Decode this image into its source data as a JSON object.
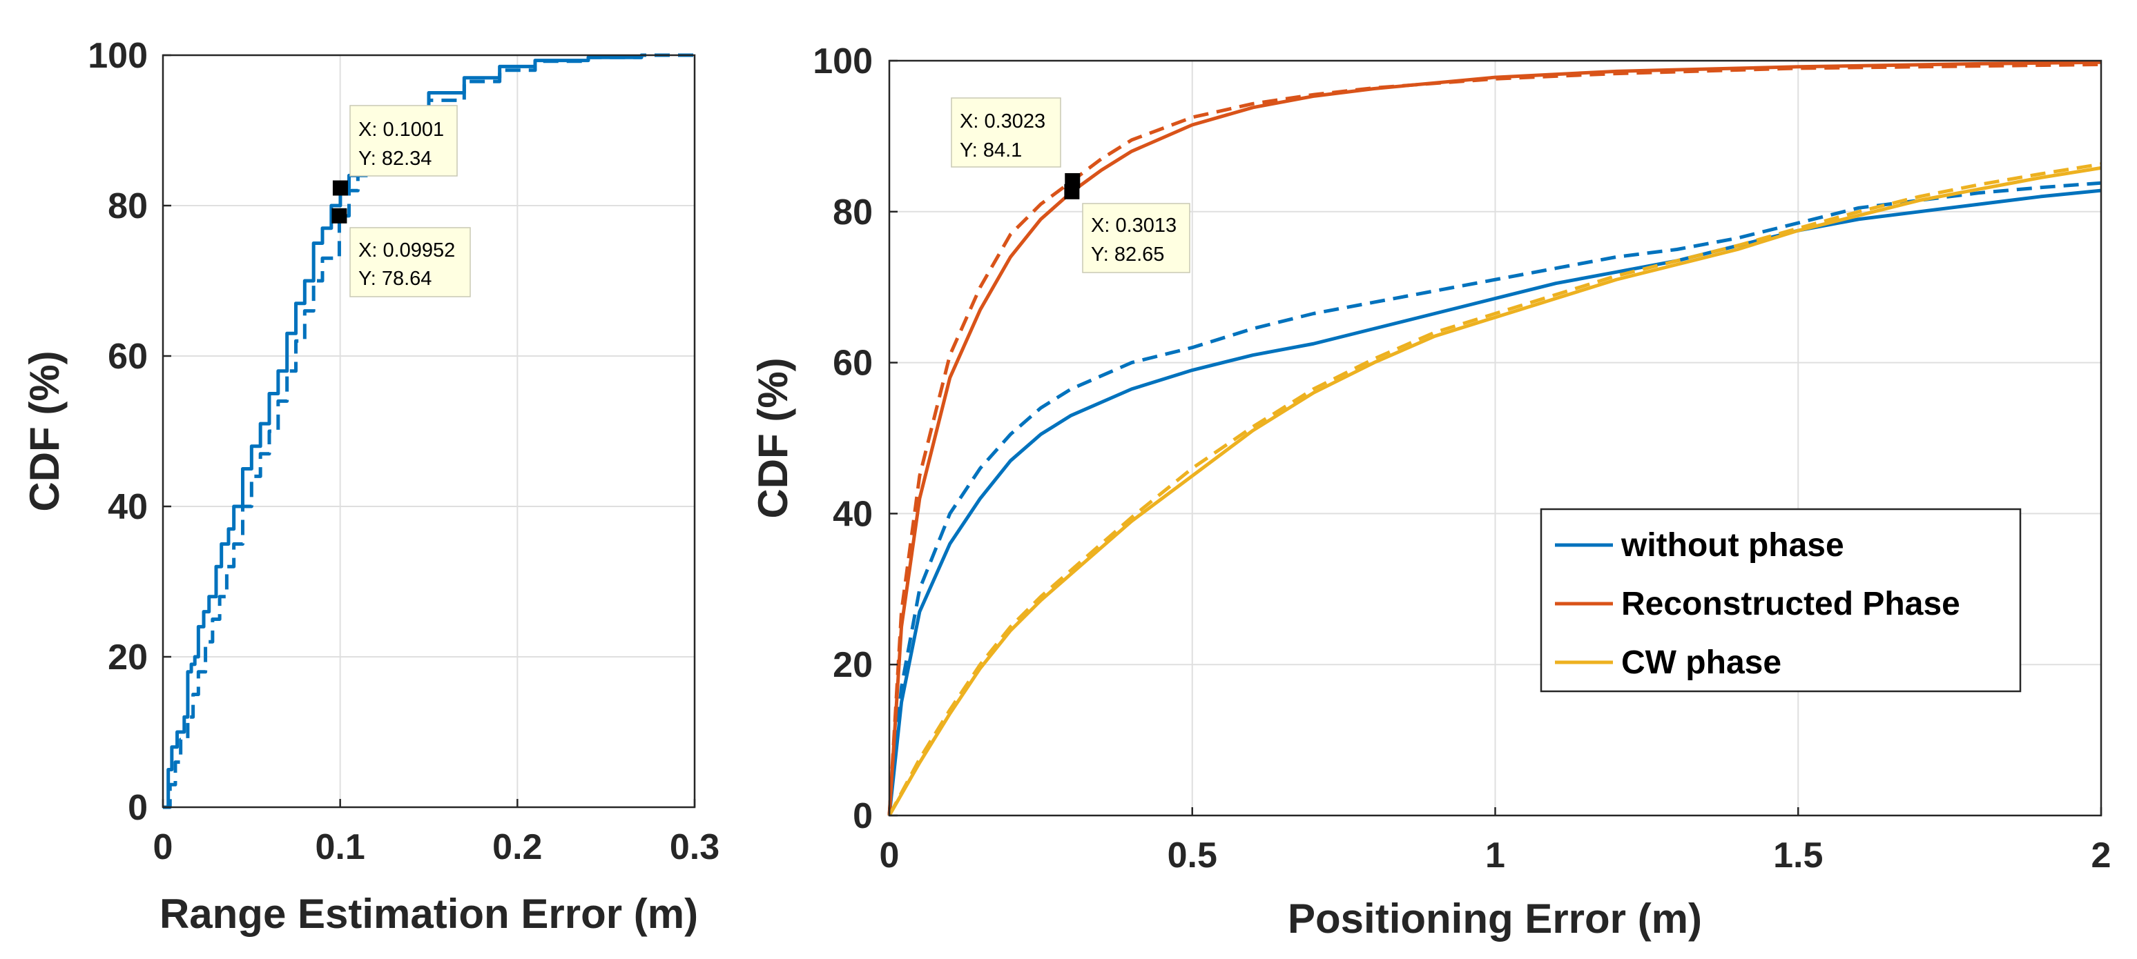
{
  "colors": {
    "without_phase": "#0072BD",
    "reconstructed_phase": "#D95319",
    "cw_phase": "#EDB120",
    "grid": "#dfdfdf",
    "axis": "#262626",
    "datatip_bg": "#ffffe1"
  },
  "chart_data": [
    {
      "type": "line",
      "xlabel": "Range Estimation Error (m)",
      "ylabel": "CDF (%)",
      "xlim": [
        0,
        0.3
      ],
      "ylim": [
        0,
        100
      ],
      "xticks": [
        "0",
        "0.1",
        "0.2",
        "0.3"
      ],
      "yticks": [
        "0",
        "20",
        "40",
        "60",
        "80",
        "100"
      ],
      "grid": true,
      "series": [
        {
          "name": "solid",
          "style": "solid",
          "color": "without_phase",
          "x": [
            0,
            0.003,
            0.005,
            0.008,
            0.012,
            0.014,
            0.016,
            0.018,
            0.02,
            0.023,
            0.026,
            0.03,
            0.033,
            0.037,
            0.04,
            0.045,
            0.05,
            0.055,
            0.06,
            0.065,
            0.07,
            0.075,
            0.08,
            0.085,
            0.09,
            0.095,
            0.1001,
            0.105,
            0.11,
            0.12,
            0.13,
            0.14,
            0.15,
            0.17,
            0.19,
            0.21,
            0.24,
            0.27
          ],
          "y": [
            0,
            5,
            8,
            10,
            12,
            18,
            19,
            20,
            24,
            26,
            28,
            32,
            35,
            37,
            40,
            45,
            48,
            51,
            55,
            58,
            63,
            67,
            70,
            75,
            77,
            80,
            82.34,
            84,
            86,
            88,
            91,
            93,
            95,
            97,
            98.5,
            99.3,
            99.7,
            100
          ]
        },
        {
          "name": "dashed",
          "style": "dashed",
          "color": "without_phase",
          "x": [
            0,
            0.004,
            0.007,
            0.01,
            0.014,
            0.017,
            0.02,
            0.024,
            0.028,
            0.032,
            0.036,
            0.04,
            0.045,
            0.05,
            0.055,
            0.06,
            0.065,
            0.07,
            0.075,
            0.08,
            0.085,
            0.09,
            0.09952,
            0.105,
            0.11,
            0.12,
            0.13,
            0.14,
            0.15,
            0.17,
            0.19,
            0.21,
            0.24,
            0.27,
            0.3
          ],
          "y": [
            0,
            3,
            6,
            9,
            12,
            15,
            18,
            22,
            25,
            28,
            32,
            35,
            40,
            44,
            47,
            50,
            54,
            58,
            62,
            66,
            70,
            73,
            78.64,
            82,
            84,
            87,
            89,
            91,
            94,
            96.5,
            98,
            99.2,
            99.7,
            100,
            100
          ]
        }
      ],
      "datatips": [
        {
          "x_value": 0.1001,
          "y_value": 82.34,
          "x_text": "X: 0.1001",
          "y_text": "Y: 82.34"
        },
        {
          "x_value": 0.09952,
          "y_value": 78.64,
          "x_text": "X: 0.09952",
          "y_text": "Y: 78.64"
        }
      ]
    },
    {
      "type": "line",
      "xlabel": "Positioning Error (m)",
      "ylabel": "CDF (%)",
      "xlim": [
        0,
        2
      ],
      "ylim": [
        0,
        100
      ],
      "xticks": [
        "0",
        "0.5",
        "1",
        "1.5",
        "2"
      ],
      "yticks": [
        "0",
        "20",
        "40",
        "60",
        "80",
        "100"
      ],
      "grid": true,
      "legend_position": "lower-right",
      "legend": [
        {
          "label": "without phase",
          "color": "without_phase"
        },
        {
          "label": "Reconstructed Phase",
          "color": "reconstructed_phase"
        },
        {
          "label": "CW phase",
          "color": "cw_phase"
        }
      ],
      "series": [
        {
          "name": "without phase",
          "style": "solid",
          "color": "without_phase",
          "x": [
            0,
            0.02,
            0.05,
            0.1,
            0.15,
            0.2,
            0.25,
            0.3,
            0.4,
            0.5,
            0.6,
            0.7,
            0.8,
            0.9,
            1.0,
            1.1,
            1.2,
            1.3,
            1.4,
            1.5,
            1.6,
            1.7,
            1.8,
            1.9,
            2.0
          ],
          "y": [
            0,
            15,
            27,
            36,
            42,
            47,
            50.5,
            53,
            56.5,
            59,
            61,
            62.5,
            64.5,
            66.5,
            68.5,
            70.5,
            72,
            73.5,
            75.5,
            77.5,
            79,
            80,
            81,
            82,
            82.8
          ]
        },
        {
          "name": "without phase (dashed)",
          "style": "dashed",
          "color": "without_phase",
          "x": [
            0,
            0.02,
            0.05,
            0.1,
            0.15,
            0.2,
            0.25,
            0.3,
            0.4,
            0.5,
            0.6,
            0.7,
            0.8,
            0.9,
            1.0,
            1.1,
            1.2,
            1.3,
            1.4,
            1.5,
            1.6,
            1.7,
            1.8,
            1.9,
            2.0
          ],
          "y": [
            0,
            17,
            30,
            40,
            46,
            50.5,
            54,
            56.5,
            60,
            62,
            64.5,
            66.5,
            68,
            69.5,
            71,
            72.5,
            74,
            75,
            76.5,
            78.5,
            80.5,
            81.5,
            82.5,
            83.2,
            83.8
          ]
        },
        {
          "name": "Reconstructed Phase",
          "style": "solid",
          "color": "reconstructed_phase",
          "x": [
            0,
            0.02,
            0.05,
            0.1,
            0.15,
            0.2,
            0.25,
            0.3013,
            0.35,
            0.4,
            0.5,
            0.6,
            0.7,
            0.8,
            1.0,
            1.2,
            1.5,
            1.8,
            2.0
          ],
          "y": [
            0,
            25,
            42,
            58,
            67,
            74,
            79,
            82.65,
            85.5,
            88,
            91.5,
            93.8,
            95.3,
            96.3,
            97.8,
            98.6,
            99.2,
            99.6,
            99.8
          ]
        },
        {
          "name": "Reconstructed Phase (dashed)",
          "style": "dashed",
          "color": "reconstructed_phase",
          "x": [
            0,
            0.02,
            0.05,
            0.1,
            0.15,
            0.2,
            0.25,
            0.3023,
            0.35,
            0.4,
            0.5,
            0.6,
            0.7,
            0.8,
            1.0,
            1.2,
            1.5,
            1.8,
            2.0
          ],
          "y": [
            0,
            27,
            45,
            61,
            70,
            77,
            81,
            84.1,
            87,
            89.5,
            92.5,
            94.3,
            95.5,
            96.4,
            97.6,
            98.3,
            99,
            99.3,
            99.5
          ]
        },
        {
          "name": "CW phase",
          "style": "solid",
          "color": "cw_phase",
          "x": [
            0,
            0.05,
            0.1,
            0.15,
            0.2,
            0.25,
            0.3,
            0.4,
            0.5,
            0.6,
            0.7,
            0.8,
            0.9,
            1.0,
            1.1,
            1.2,
            1.3,
            1.4,
            1.5,
            1.6,
            1.7,
            1.8,
            1.9,
            2.0
          ],
          "y": [
            0,
            7,
            13.5,
            19.5,
            24.5,
            28.5,
            32,
            39,
            45,
            51,
            56,
            60,
            63.5,
            66,
            68.5,
            71,
            73,
            75,
            77.5,
            79.5,
            81.5,
            83,
            84.5,
            85.8
          ]
        },
        {
          "name": "CW phase (dashed)",
          "style": "dashed",
          "color": "cw_phase",
          "x": [
            0,
            0.05,
            0.1,
            0.15,
            0.2,
            0.25,
            0.3,
            0.4,
            0.5,
            0.6,
            0.7,
            0.8,
            0.9,
            1.0,
            1.1,
            1.2,
            1.3,
            1.4,
            1.5,
            1.6,
            1.7,
            1.8,
            1.9,
            2.0
          ],
          "y": [
            0,
            7.5,
            14,
            20,
            25,
            29,
            32.5,
            39.5,
            46,
            51.5,
            56.5,
            60.5,
            64,
            66.5,
            69,
            71.5,
            73.5,
            75.5,
            77.8,
            80,
            82,
            83.6,
            85,
            86.3
          ]
        }
      ],
      "datatips": [
        {
          "x_value": 0.3023,
          "y_value": 84.1,
          "x_text": "X: 0.3023",
          "y_text": "Y: 84.1"
        },
        {
          "x_value": 0.3013,
          "y_value": 82.65,
          "x_text": "X: 0.3013",
          "y_text": "Y: 82.65"
        }
      ]
    }
  ]
}
